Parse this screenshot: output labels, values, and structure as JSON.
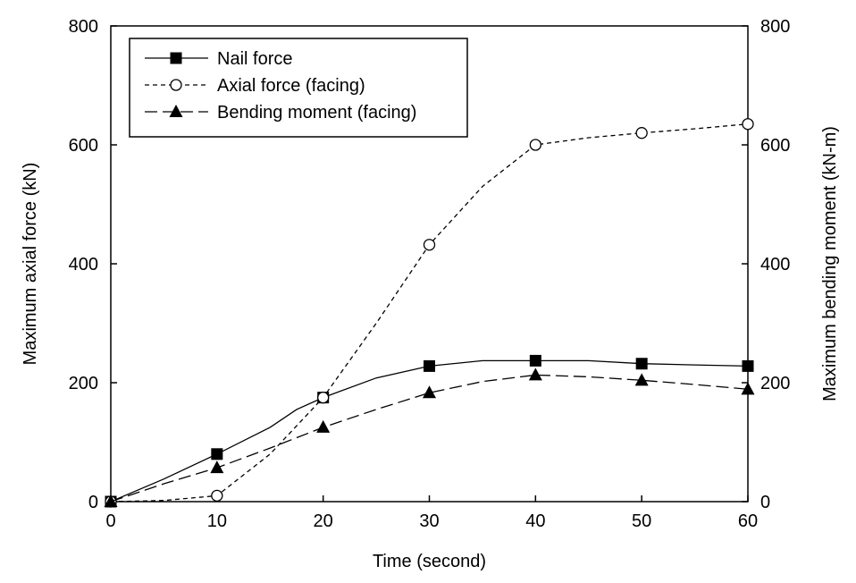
{
  "chart_data": {
    "type": "line",
    "xlabel": "Time (second)",
    "ylabel_left": "Maximum axial force (kN)",
    "ylabel_right": "Maximum bending moment (kN-m)",
    "xlim": [
      0,
      60
    ],
    "ylim_left": [
      0,
      800
    ],
    "ylim_right": [
      0,
      800
    ],
    "x_ticks": [
      0,
      10,
      20,
      30,
      40,
      50,
      60
    ],
    "y_ticks_left": [
      0,
      200,
      400,
      600,
      800
    ],
    "y_ticks_right": [
      0,
      200,
      400,
      600,
      800
    ],
    "grid": false,
    "legend_position": "top-left",
    "series": [
      {
        "name": "Nail force",
        "axis": "left",
        "line_style": "solid",
        "marker": "filled-square",
        "color": "#000000",
        "curve": [
          [
            0,
            0
          ],
          [
            5,
            38
          ],
          [
            10,
            80
          ],
          [
            15,
            125
          ],
          [
            17.5,
            155
          ],
          [
            20,
            175
          ],
          [
            25,
            208
          ],
          [
            30,
            228
          ],
          [
            35,
            237
          ],
          [
            40,
            237
          ],
          [
            45,
            237
          ],
          [
            50,
            232
          ],
          [
            55,
            230
          ],
          [
            60,
            228
          ]
        ],
        "points": [
          [
            0,
            0
          ],
          [
            10,
            80
          ],
          [
            20,
            175
          ],
          [
            30,
            228
          ],
          [
            40,
            237
          ],
          [
            50,
            232
          ],
          [
            60,
            228
          ]
        ]
      },
      {
        "name": "Axial force (facing)",
        "axis": "left",
        "line_style": "short-dash",
        "marker": "open-circle",
        "color": "#000000",
        "curve": [
          [
            0,
            0
          ],
          [
            5,
            2
          ],
          [
            10,
            10
          ],
          [
            15,
            80
          ],
          [
            20,
            175
          ],
          [
            25,
            300
          ],
          [
            30,
            432
          ],
          [
            35,
            530
          ],
          [
            40,
            600
          ],
          [
            45,
            612
          ],
          [
            50,
            620
          ],
          [
            55,
            627
          ],
          [
            60,
            635
          ]
        ],
        "points": [
          [
            0,
            0
          ],
          [
            10,
            10
          ],
          [
            20,
            175
          ],
          [
            30,
            432
          ],
          [
            40,
            600
          ],
          [
            50,
            620
          ],
          [
            60,
            635
          ]
        ]
      },
      {
        "name": "Bending moment (facing)",
        "axis": "right",
        "line_style": "long-dash",
        "marker": "filled-triangle",
        "color": "#000000",
        "curve": [
          [
            0,
            0
          ],
          [
            5,
            30
          ],
          [
            10,
            57
          ],
          [
            15,
            90
          ],
          [
            20,
            125
          ],
          [
            25,
            155
          ],
          [
            30,
            183
          ],
          [
            35,
            202
          ],
          [
            40,
            213
          ],
          [
            45,
            210
          ],
          [
            50,
            204
          ],
          [
            55,
            197
          ],
          [
            60,
            189
          ]
        ],
        "points": [
          [
            0,
            0
          ],
          [
            10,
            57
          ],
          [
            20,
            125
          ],
          [
            30,
            183
          ],
          [
            40,
            213
          ],
          [
            50,
            204
          ],
          [
            60,
            189
          ]
        ]
      }
    ]
  }
}
